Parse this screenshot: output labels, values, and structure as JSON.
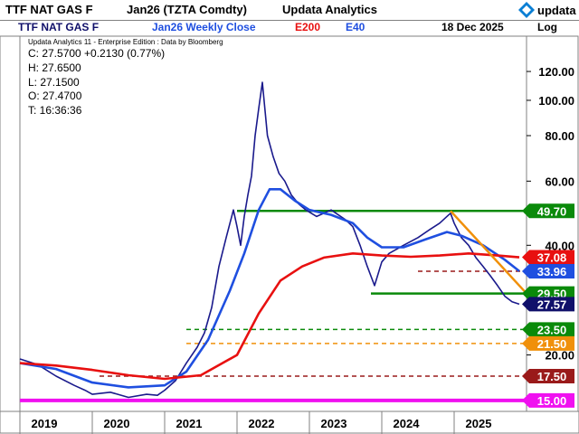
{
  "header": {
    "symbol": "TTF NAT GAS F",
    "contract": "Jan26 (TZTA Comdty)",
    "vendor": "Updata Analytics",
    "logo_text": "updata",
    "symbol2": "TTF NAT GAS F",
    "series_title": "Jan26 Weekly Close",
    "ma_long_label": "E200",
    "ma_short_label": "E40",
    "date": "18 Dec 2025",
    "scale_label": "Log"
  },
  "info": {
    "edition": "Updata Analytics 11 - Enterprise Edition : Data by Bloomberg",
    "close": "C: 27.5700  +0.2130 (0.77%)",
    "high": "H: 27.6500",
    "low": "L: 27.1500",
    "open": "O: 27.4700",
    "time": "T: 16:36:36"
  },
  "colors": {
    "price": "#1a1a8c",
    "e40": "#1f4fe0",
    "e200": "#e81010",
    "green": "#0a8a0a",
    "orange": "#f0900a",
    "darkred": "#9a1a1a",
    "magenta": "#f010f0",
    "navy_label": "#10106a"
  },
  "chart_data": {
    "type": "line",
    "scale": "log",
    "ylim": [
      14,
      150
    ],
    "x_tick_labels": [
      "2019",
      "2020",
      "2021",
      "2022",
      "2023",
      "2024",
      "2025"
    ],
    "y_tick_labels": [
      "120.00",
      "100.00",
      "80.00",
      "60.00",
      "40.00",
      "20.00"
    ],
    "y_ticks": [
      120,
      100,
      80,
      60,
      40,
      20
    ],
    "series": [
      {
        "name": "Jan26 Weekly Close",
        "color": "#1a1a8c",
        "points": [
          [
            2019.0,
            19.5
          ],
          [
            2019.25,
            18.8
          ],
          [
            2019.5,
            17.5
          ],
          [
            2019.75,
            16.5
          ],
          [
            2019.9,
            16.0
          ],
          [
            2020.0,
            15.6
          ],
          [
            2020.25,
            15.8
          ],
          [
            2020.5,
            15.3
          ],
          [
            2020.75,
            15.6
          ],
          [
            2020.9,
            15.5
          ],
          [
            2021.0,
            16.0
          ],
          [
            2021.15,
            17.0
          ],
          [
            2021.3,
            19.0
          ],
          [
            2021.45,
            21.0
          ],
          [
            2021.55,
            23.0
          ],
          [
            2021.65,
            27.0
          ],
          [
            2021.75,
            35.0
          ],
          [
            2021.85,
            42.0
          ],
          [
            2021.95,
            50.0
          ],
          [
            2022.0,
            45.0
          ],
          [
            2022.05,
            40.0
          ],
          [
            2022.1,
            48.0
          ],
          [
            2022.15,
            55.0
          ],
          [
            2022.2,
            62.0
          ],
          [
            2022.25,
            80.0
          ],
          [
            2022.3,
            95.0
          ],
          [
            2022.35,
            112.0
          ],
          [
            2022.42,
            80.0
          ],
          [
            2022.5,
            70.0
          ],
          [
            2022.58,
            63.0
          ],
          [
            2022.66,
            60.0
          ],
          [
            2022.75,
            55.0
          ],
          [
            2022.85,
            52.0
          ],
          [
            2022.95,
            50.0
          ],
          [
            2023.1,
            48.0
          ],
          [
            2023.3,
            50.0
          ],
          [
            2023.5,
            47.0
          ],
          [
            2023.6,
            45.0
          ],
          [
            2023.7,
            40.0
          ],
          [
            2023.8,
            35.0
          ],
          [
            2023.9,
            31.0
          ],
          [
            2024.0,
            36.0
          ],
          [
            2024.1,
            38.0
          ],
          [
            2024.3,
            40.0
          ],
          [
            2024.5,
            42.0
          ],
          [
            2024.65,
            44.0
          ],
          [
            2024.8,
            46.0
          ],
          [
            2024.9,
            48.0
          ],
          [
            2024.95,
            49.0
          ],
          [
            2025.0,
            46.0
          ],
          [
            2025.1,
            42.0
          ],
          [
            2025.2,
            40.0
          ],
          [
            2025.3,
            37.0
          ],
          [
            2025.4,
            35.0
          ],
          [
            2025.5,
            33.0
          ],
          [
            2025.6,
            31.0
          ],
          [
            2025.7,
            29.0
          ],
          [
            2025.8,
            28.0
          ],
          [
            2025.9,
            27.57
          ]
        ]
      },
      {
        "name": "E40",
        "color": "#1f4fe0",
        "points": [
          [
            2019.0,
            19.0
          ],
          [
            2019.5,
            18.3
          ],
          [
            2020.0,
            16.8
          ],
          [
            2020.5,
            16.3
          ],
          [
            2021.0,
            16.5
          ],
          [
            2021.3,
            18.0
          ],
          [
            2021.6,
            22.0
          ],
          [
            2021.9,
            30.0
          ],
          [
            2022.1,
            38.0
          ],
          [
            2022.3,
            50.0
          ],
          [
            2022.45,
            57.0
          ],
          [
            2022.6,
            57.0
          ],
          [
            2022.8,
            53.0
          ],
          [
            2023.0,
            50.0
          ],
          [
            2023.3,
            48.5
          ],
          [
            2023.6,
            46.0
          ],
          [
            2023.8,
            42.0
          ],
          [
            2024.0,
            39.5
          ],
          [
            2024.3,
            39.5
          ],
          [
            2024.6,
            41.5
          ],
          [
            2024.9,
            43.5
          ],
          [
            2025.1,
            42.5
          ],
          [
            2025.4,
            40.0
          ],
          [
            2025.7,
            36.5
          ],
          [
            2025.9,
            33.96
          ]
        ]
      },
      {
        "name": "E200",
        "color": "#e81010",
        "points": [
          [
            2019.0,
            19.0
          ],
          [
            2019.5,
            18.7
          ],
          [
            2020.0,
            18.2
          ],
          [
            2020.5,
            17.6
          ],
          [
            2021.0,
            17.2
          ],
          [
            2021.5,
            17.6
          ],
          [
            2022.0,
            20.0
          ],
          [
            2022.3,
            26.0
          ],
          [
            2022.6,
            32.0
          ],
          [
            2022.9,
            35.0
          ],
          [
            2023.2,
            37.0
          ],
          [
            2023.6,
            38.0
          ],
          [
            2024.0,
            37.5
          ],
          [
            2024.4,
            37.2
          ],
          [
            2024.8,
            37.5
          ],
          [
            2025.2,
            38.0
          ],
          [
            2025.6,
            37.5
          ],
          [
            2025.9,
            37.08
          ]
        ]
      }
    ],
    "levels": [
      {
        "label": "49.70",
        "value": 49.7,
        "color": "#0a8a0a",
        "style": "solid",
        "x_from": 2022.0
      },
      {
        "label": "29.50",
        "value": 29.5,
        "color": "#0a8a0a",
        "style": "solid",
        "x_from": 2023.85
      },
      {
        "label": "23.50",
        "value": 23.5,
        "color": "#0a8a0a",
        "style": "dashed",
        "x_from": 2021.3
      },
      {
        "label": "21.50",
        "value": 21.5,
        "color": "#f0900a",
        "style": "dashed",
        "x_from": 2021.3
      },
      {
        "label": "17.50",
        "value": 17.5,
        "color": "#9a1a1a",
        "style": "dashed",
        "x_from": 2020.1
      },
      {
        "label": "15.00",
        "value": 15.0,
        "color": "#f010f0",
        "style": "solid",
        "x_from": 2019.0
      },
      {
        "label": "",
        "value": 33.96,
        "color": "#9a1a1a",
        "style": "dashed",
        "x_from": 2024.5
      }
    ],
    "trendline": {
      "color": "#f0900a",
      "from": [
        2024.95,
        49.7
      ],
      "to": [
        2026.0,
        29.5
      ]
    },
    "value_labels": [
      {
        "text": "49.70",
        "value": 49.7,
        "bg": "#0a8a0a",
        "fg": "#ffffff"
      },
      {
        "text": "37.08",
        "value": 37.08,
        "bg": "#e81010",
        "fg": "#ffffff"
      },
      {
        "text": "33.96",
        "value": 33.96,
        "bg": "#1f4fe0",
        "fg": "#ffffff"
      },
      {
        "text": "29.50",
        "value": 29.5,
        "bg": "#0a8a0a",
        "fg": "#ffffff"
      },
      {
        "text": "27.57",
        "value": 27.57,
        "bg": "#10106a",
        "fg": "#ffffff"
      },
      {
        "text": "23.50",
        "value": 23.5,
        "bg": "#0a8a0a",
        "fg": "#ffffff"
      },
      {
        "text": "21.50",
        "value": 21.5,
        "bg": "#f0900a",
        "fg": "#ffffff"
      },
      {
        "text": "17.50",
        "value": 17.5,
        "bg": "#9a1a1a",
        "fg": "#ffffff"
      },
      {
        "text": "15.00",
        "value": 15.0,
        "bg": "#f010f0",
        "fg": "#ffffff"
      }
    ]
  }
}
